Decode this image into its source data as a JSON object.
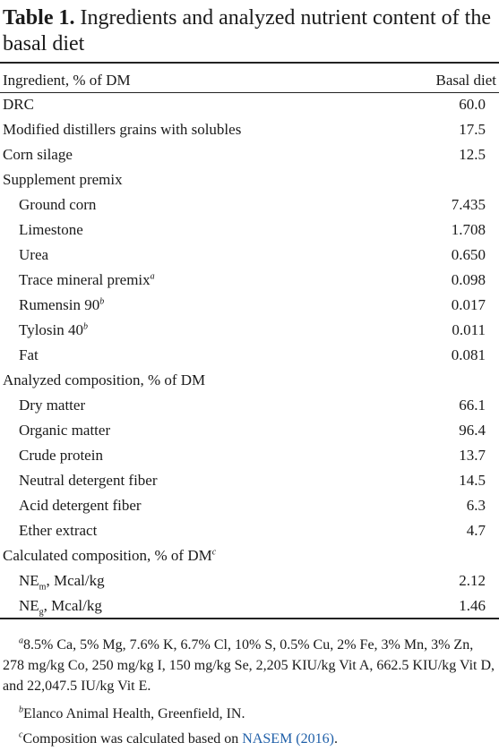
{
  "table": {
    "title_label": "Table 1.",
    "title_text": "Ingredients and analyzed nutrient content of the basal diet",
    "header": {
      "col1": "Ingredient, % of DM",
      "col2": "Basal diet"
    },
    "rows": [
      {
        "label": "DRC",
        "value": "60.0"
      },
      {
        "label": "Modified distillers grains with solubles",
        "value": "17.5"
      },
      {
        "label": "Corn silage",
        "value": "12.5"
      },
      {
        "label": "Supplement premix",
        "value": ""
      },
      {
        "label": "Ground corn",
        "value": "7.435"
      },
      {
        "label": "Limestone",
        "value": "1.708"
      },
      {
        "label": "Urea",
        "value": "0.650"
      },
      {
        "label": "Trace mineral premix",
        "sup": "a",
        "value": "0.098"
      },
      {
        "label": "Rumensin 90",
        "sup": "b",
        "value": "0.017"
      },
      {
        "label": "Tylosin 40",
        "sup": "b",
        "value": "0.011"
      },
      {
        "label": "Fat",
        "value": "0.081"
      },
      {
        "label": "Analyzed composition, % of DM",
        "value": ""
      },
      {
        "label": "Dry matter",
        "value": "66.1"
      },
      {
        "label": "Organic matter",
        "value": "96.4"
      },
      {
        "label": "Crude protein",
        "value": "13.7"
      },
      {
        "label": "Neutral detergent fiber",
        "value": "14.5"
      },
      {
        "label": "Acid detergent fiber",
        "value": "6.3"
      },
      {
        "label": "Ether extract",
        "value": "4.7"
      },
      {
        "label": "Calculated composition, % of DM",
        "sup": "c",
        "value": ""
      },
      {
        "label_pre": "NE",
        "label_sub": "m",
        "label_post": ", Mcal/kg",
        "value": "2.12"
      },
      {
        "label_pre": "NE",
        "label_sub": "g",
        "label_post": ", Mcal/kg",
        "value": "1.46"
      }
    ],
    "footnotes": {
      "a_mark": "a",
      "a_text": "8.5% Ca, 5% Mg, 7.6% K, 6.7% Cl, 10% S, 0.5% Cu, 2% Fe, 3% Mn, 3% Zn, 278 mg/kg Co, 250 mg/kg I, 150 mg/kg Se, 2,205 KIU/kg Vit A, 662.5 KIU/kg Vit D, and 22,047.5 IU/kg Vit E.",
      "b_mark": "b",
      "b_text": "Elanco Animal Health, Greenfield, IN.",
      "c_mark": "c",
      "c_text": "Composition was calculated based on ",
      "c_link": "NASEM (2016)",
      "c_end": "."
    }
  }
}
